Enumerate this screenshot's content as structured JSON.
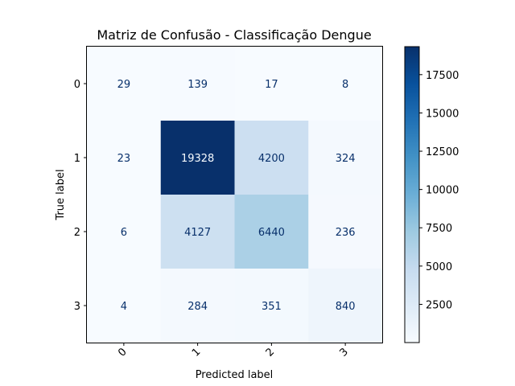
{
  "chart_data": {
    "type": "heatmap",
    "title": "Matriz de Confusão - Classificação Dengue",
    "xlabel": "Predicted label",
    "ylabel": "True label",
    "x_categories": [
      "0",
      "1",
      "2",
      "3"
    ],
    "y_categories": [
      "0",
      "1",
      "2",
      "3"
    ],
    "matrix": [
      [
        29,
        139,
        17,
        8
      ],
      [
        23,
        19328,
        4200,
        324
      ],
      [
        6,
        4127,
        6440,
        236
      ],
      [
        4,
        284,
        351,
        840
      ]
    ],
    "colormap": "Blues",
    "vmin": 4,
    "vmax": 19328,
    "colorbar_ticks": [
      2500,
      5000,
      7500,
      10000,
      12500,
      15000,
      17500
    ],
    "colorbar_tick_labels": [
      "2500",
      "5000",
      "7500",
      "10000",
      "12500",
      "15000",
      "17500"
    ],
    "x_tick_rotation_deg": 45,
    "grid": false
  }
}
